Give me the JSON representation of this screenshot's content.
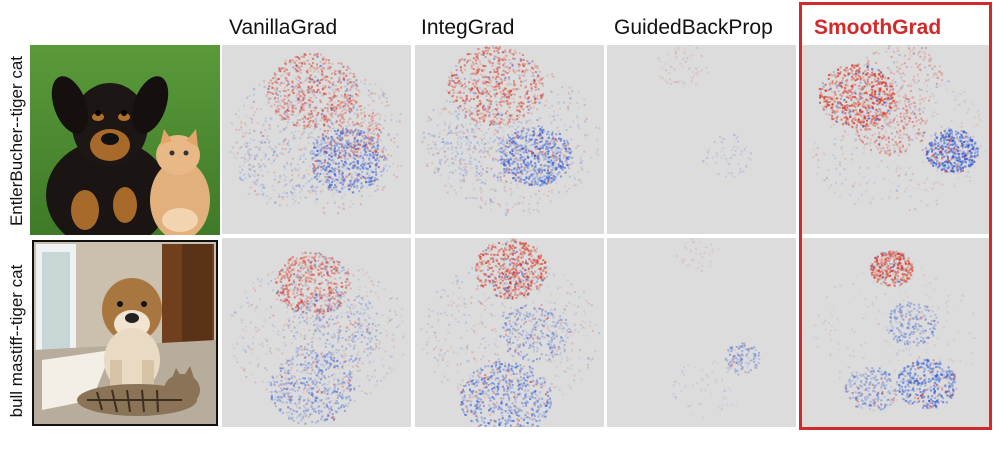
{
  "columns": [
    {
      "label": "VanillaGrad",
      "highlight": false
    },
    {
      "label": "IntegGrad",
      "highlight": false
    },
    {
      "label": "GuidedBackProp",
      "highlight": false
    },
    {
      "label": "SmoothGrad",
      "highlight": true
    }
  ],
  "rows": [
    {
      "label": "EntlerBucher--tiger cat",
      "photo": "dog-and-kitten-on-grass"
    },
    {
      "label": "bull mastiff--tiger cat",
      "photo": "bulldog-and-tabby-cat-indoors"
    }
  ],
  "colors": {
    "positive": "#d9331f",
    "negative": "#2f5bd8",
    "background": "#dcdcdc",
    "highlight": "#d22a2a"
  }
}
